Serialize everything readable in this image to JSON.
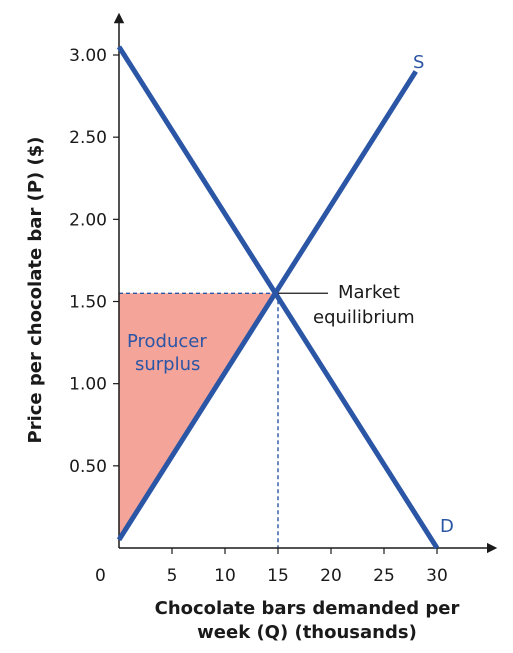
{
  "chart_data": {
    "type": "line",
    "xlabel_line1": "Chocolate bars demanded per",
    "xlabel_line2": "week (Q) (thousands)",
    "ylabel": "Price per chocolate bar (P) ($)",
    "origin_label": "0",
    "x_ticks": [
      "5",
      "10",
      "15",
      "20",
      "25",
      "30"
    ],
    "y_ticks": [
      "0.50",
      "1.00",
      "1.50",
      "2.00",
      "2.50",
      "3.00"
    ],
    "xlim": [
      0,
      35
    ],
    "ylim": [
      0,
      3.3
    ],
    "series": [
      {
        "name": "D",
        "x": [
          0,
          30
        ],
        "y": [
          3.05,
          0
        ],
        "color": "#2b55a5"
      },
      {
        "name": "S",
        "x": [
          0,
          28
        ],
        "y": [
          0.05,
          2.9
        ],
        "color": "#2b55a5"
      }
    ],
    "equilibrium": {
      "x": 15,
      "y": 1.55,
      "label_line1": "Market",
      "label_line2": "equilibrium"
    },
    "producer_surplus": {
      "label_line1": "Producer",
      "label_line2": "surplus",
      "color": "#f4a499"
    }
  }
}
